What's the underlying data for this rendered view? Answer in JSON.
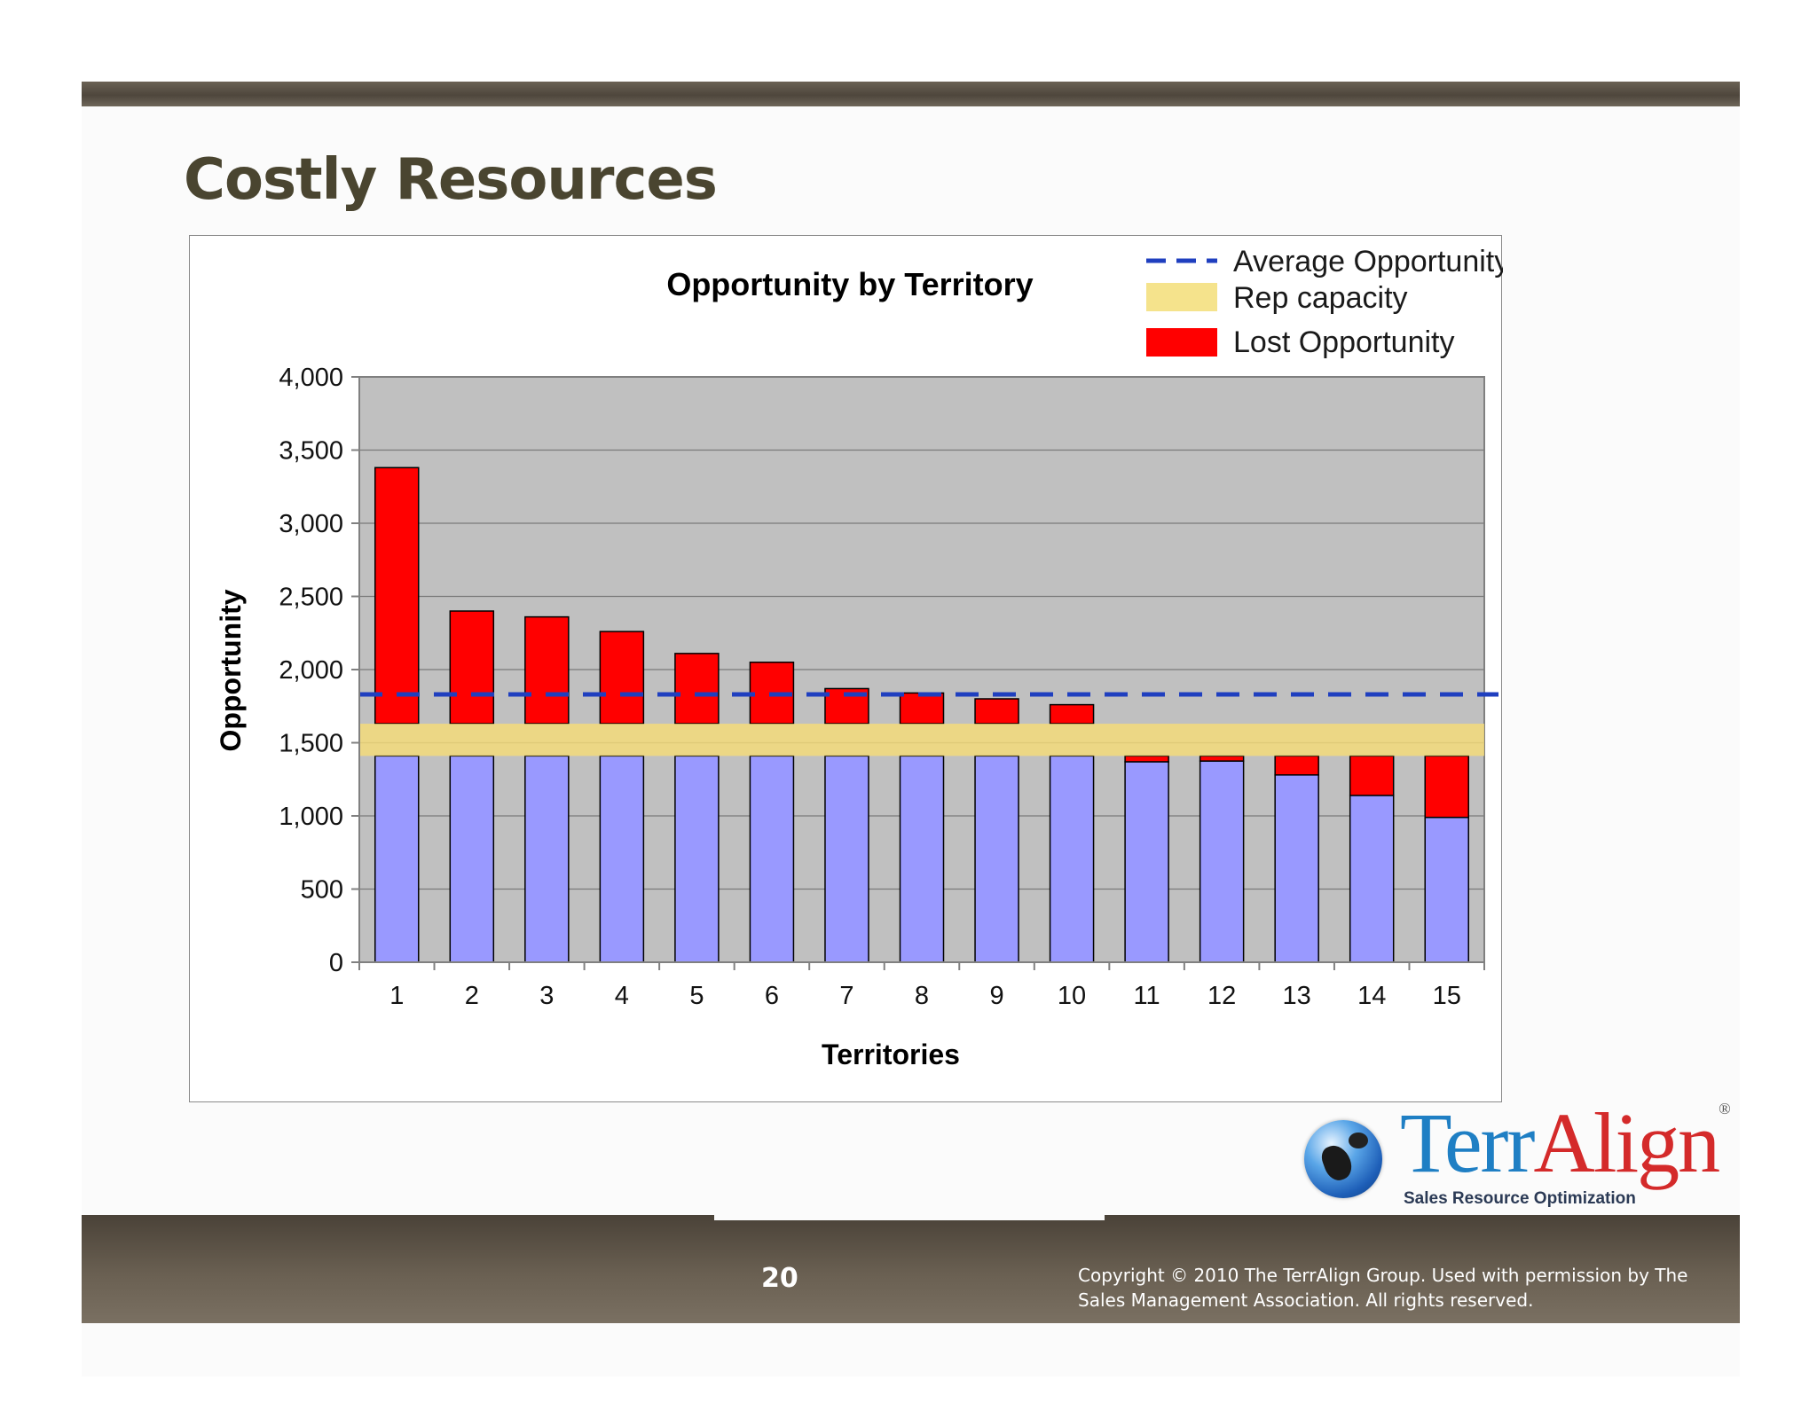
{
  "slide": {
    "title": "Costly Resources",
    "page_number": "20",
    "copyright": "Copyright © 2010 The TerrAlign Group.  Used with permission by The Sales Management Association.  All rights reserved."
  },
  "logo": {
    "name_part1": "Terr",
    "name_part2": "Align",
    "registered_mark": "®",
    "tagline": "Sales Resource Optimization"
  },
  "colors": {
    "plot_background": "#c0c0c0",
    "base_bar": "#9999ff",
    "lost_opportunity": "#ff0000",
    "rep_capacity_band": "#f5dc78",
    "average_line": "#1f3fbf",
    "top_bar": "#5a5246",
    "title_text": "#4a4530"
  },
  "chart_data": {
    "type": "bar",
    "title": "Opportunity by Territory",
    "xlabel": "Territories",
    "ylabel": "Opportunity",
    "ylim": [
      0,
      4000
    ],
    "yticks": [
      0,
      500,
      1000,
      1500,
      2000,
      2500,
      3000,
      3500,
      4000
    ],
    "ytick_labels": [
      "0",
      "500",
      "1,000",
      "1,500",
      "2,000",
      "2,500",
      "3,000",
      "3,500",
      "4,000"
    ],
    "grid": true,
    "legend_position": "top-right",
    "categories": [
      "1",
      "2",
      "3",
      "4",
      "5",
      "6",
      "7",
      "8",
      "9",
      "10",
      "11",
      "12",
      "13",
      "14",
      "15"
    ],
    "series": [
      {
        "name": "Lost Opportunity",
        "values": [
          3380,
          2400,
          2360,
          2260,
          2110,
          2050,
          1870,
          1840,
          1800,
          1760,
          1430,
          1415,
          1410,
          1410,
          1410
        ]
      }
    ],
    "territory_opportunity": [
      3380,
      2400,
      2360,
      2260,
      2110,
      2050,
      1870,
      1840,
      1800,
      1760,
      1370,
      1375,
      1280,
      1140,
      990
    ],
    "rep_capacity": {
      "name": "Rep capacity",
      "low": 1410,
      "high": 1630
    },
    "average_opportunity": {
      "name": "Average Opportunity",
      "value": 1830
    }
  }
}
